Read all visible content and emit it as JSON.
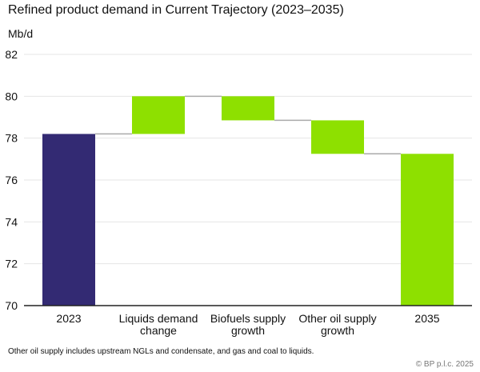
{
  "chart_data": {
    "type": "waterfall",
    "title": "Refined product demand in Current Trajectory (2023–2035)",
    "ylabel": "Mb/d",
    "ylim": [
      70,
      82
    ],
    "yticks": [
      70,
      72,
      74,
      76,
      78,
      80,
      82
    ],
    "grid": true,
    "categories": [
      "2023",
      "Liquids demand change",
      "Biofuels supply growth",
      "Other oil supply growth",
      "2035"
    ],
    "category_lines": [
      [
        "2023"
      ],
      [
        "Liquids demand",
        "change"
      ],
      [
        "Biofuels supply",
        "growth"
      ],
      [
        "Other oil supply",
        "growth"
      ],
      [
        "2035"
      ]
    ],
    "bars": [
      {
        "category": "2023",
        "kind": "total",
        "start": 70,
        "end": 78.2
      },
      {
        "category": "Liquids demand change",
        "kind": "increase",
        "start": 78.2,
        "end": 80.0
      },
      {
        "category": "Biofuels supply growth",
        "kind": "decrease",
        "start": 80.0,
        "end": 78.85
      },
      {
        "category": "Other oil supply growth",
        "kind": "decrease",
        "start": 78.85,
        "end": 77.25
      },
      {
        "category": "2035",
        "kind": "total",
        "start": 70,
        "end": 77.25
      }
    ],
    "colors": {
      "total_2023": "#332a73",
      "change": "#8ee000",
      "total_2035": "#8ee000",
      "connector": "#aaaaaa",
      "grid": "#e4e4e4",
      "axis": "#222222"
    }
  },
  "footnote": "Other oil supply includes upstream NGLs and condensate, and gas and coal to liquids.",
  "copyright": "© BP p.l.c. 2025"
}
